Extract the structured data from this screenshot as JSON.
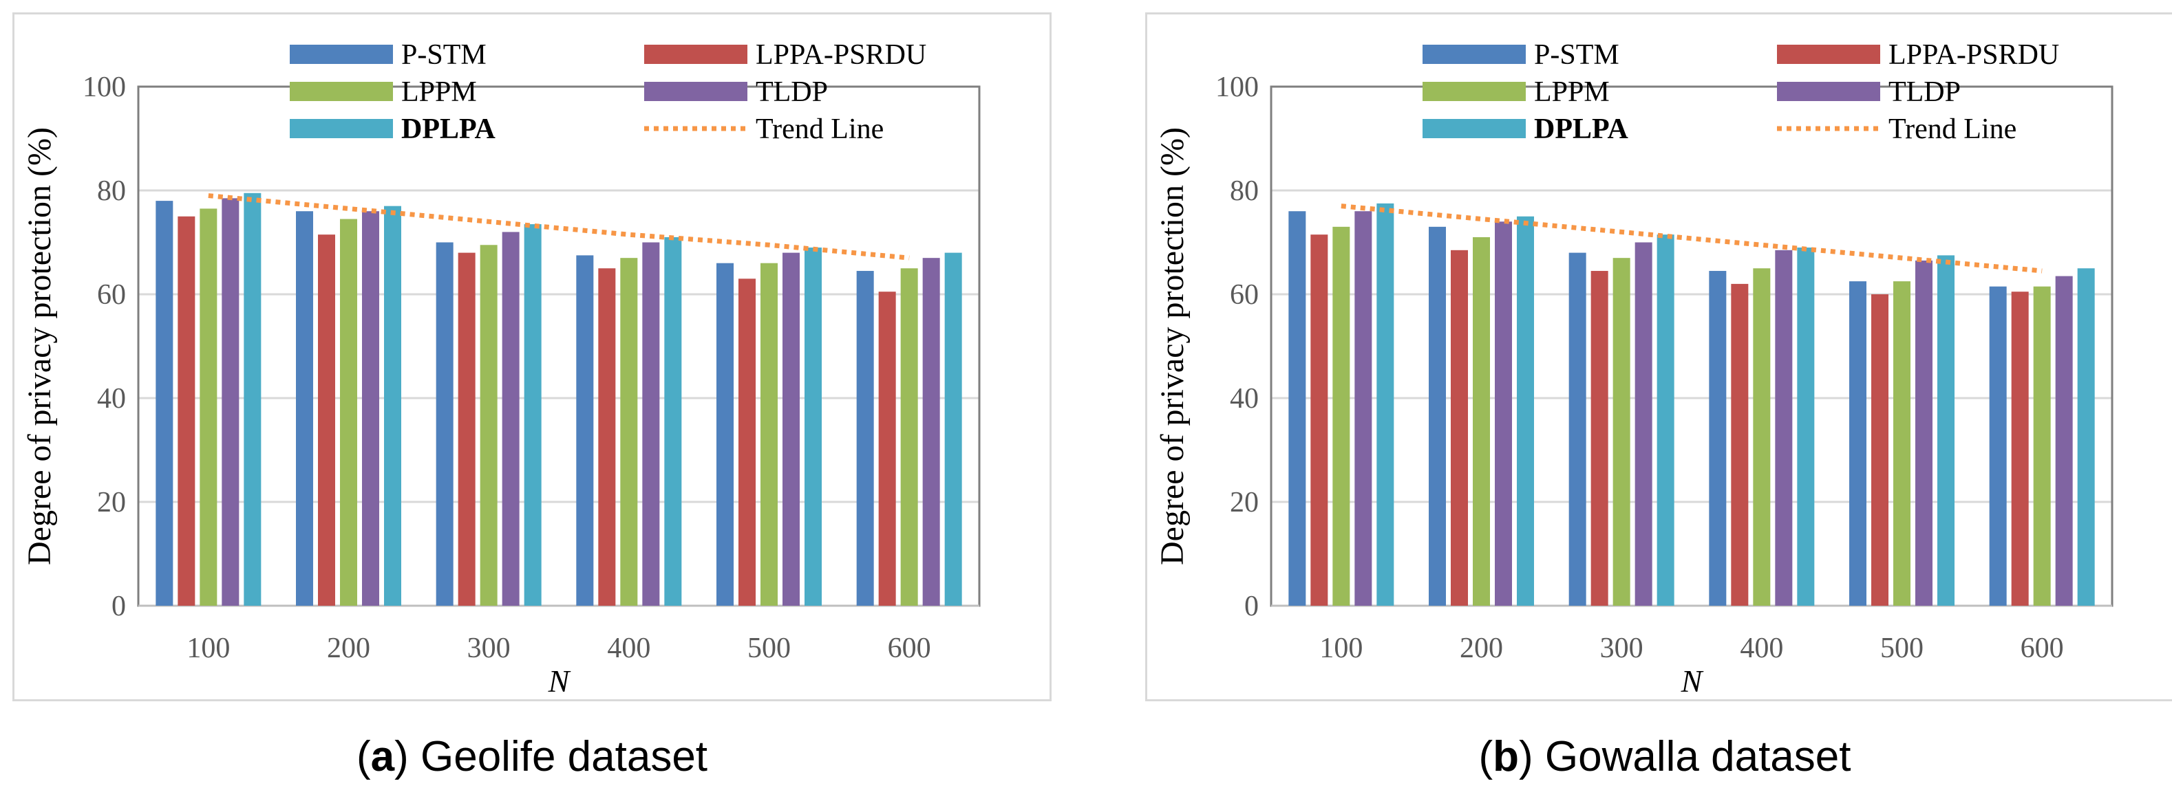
{
  "chart_data": [
    {
      "type": "bar",
      "panel": "a",
      "caption_label": "a",
      "caption_text": "Geolife dataset",
      "categories": [
        "100",
        "200",
        "300",
        "400",
        "500",
        "600"
      ],
      "series": [
        {
          "name": "P-STM",
          "color": "#4f81bd",
          "values": [
            78,
            76,
            70,
            67.5,
            66,
            64.5
          ]
        },
        {
          "name": "LPPA-PSRDU",
          "color": "#c0504d",
          "values": [
            75,
            71.5,
            68,
            65,
            63,
            60.5
          ]
        },
        {
          "name": "LPPM",
          "color": "#9bbb59",
          "values": [
            76.5,
            74.5,
            69.5,
            67,
            66,
            65
          ]
        },
        {
          "name": "TLDP",
          "color": "#8064a2",
          "values": [
            78.5,
            76,
            72,
            70,
            68,
            67
          ]
        },
        {
          "name": "DPLPA",
          "color": "#4bacc6",
          "values": [
            79.5,
            77,
            73.5,
            71,
            69,
            68
          ]
        }
      ],
      "trend_line": {
        "name": "Trend Line",
        "color": "#f79646",
        "values": [
          79,
          76.5,
          74,
          71.5,
          69.5,
          67
        ]
      },
      "xlabel": "N",
      "ylabel": "Degree of privacy protection (%)",
      "ylim": [
        0,
        100
      ],
      "yticks": [
        "0",
        "20",
        "40",
        "60",
        "80",
        "100"
      ],
      "grid": true,
      "legend_position": "top"
    },
    {
      "type": "bar",
      "panel": "b",
      "caption_label": "b",
      "caption_text": "Gowalla dataset",
      "categories": [
        "100",
        "200",
        "300",
        "400",
        "500",
        "600"
      ],
      "series": [
        {
          "name": "P-STM",
          "color": "#4f81bd",
          "values": [
            76,
            73,
            68,
            64.5,
            62.5,
            61.5
          ]
        },
        {
          "name": "LPPA-PSRDU",
          "color": "#c0504d",
          "values": [
            71.5,
            68.5,
            64.5,
            62,
            60,
            60.5
          ]
        },
        {
          "name": "LPPM",
          "color": "#9bbb59",
          "values": [
            73,
            71,
            67,
            65,
            62.5,
            61.5
          ]
        },
        {
          "name": "TLDP",
          "color": "#8064a2",
          "values": [
            76,
            74,
            70,
            68.5,
            66.5,
            63.5
          ]
        },
        {
          "name": "DPLPA",
          "color": "#4bacc6",
          "values": [
            77.5,
            75,
            71.5,
            69,
            67.5,
            65
          ]
        }
      ],
      "trend_line": {
        "name": "Trend Line",
        "color": "#f79646",
        "values": [
          77,
          74.5,
          72,
          69.5,
          67,
          64.5
        ]
      },
      "xlabel": "N",
      "ylabel": "Degree of privacy protection (%)",
      "ylim": [
        0,
        100
      ],
      "yticks": [
        "0",
        "20",
        "40",
        "60",
        "80",
        "100"
      ],
      "grid": true,
      "legend_position": "top"
    }
  ]
}
